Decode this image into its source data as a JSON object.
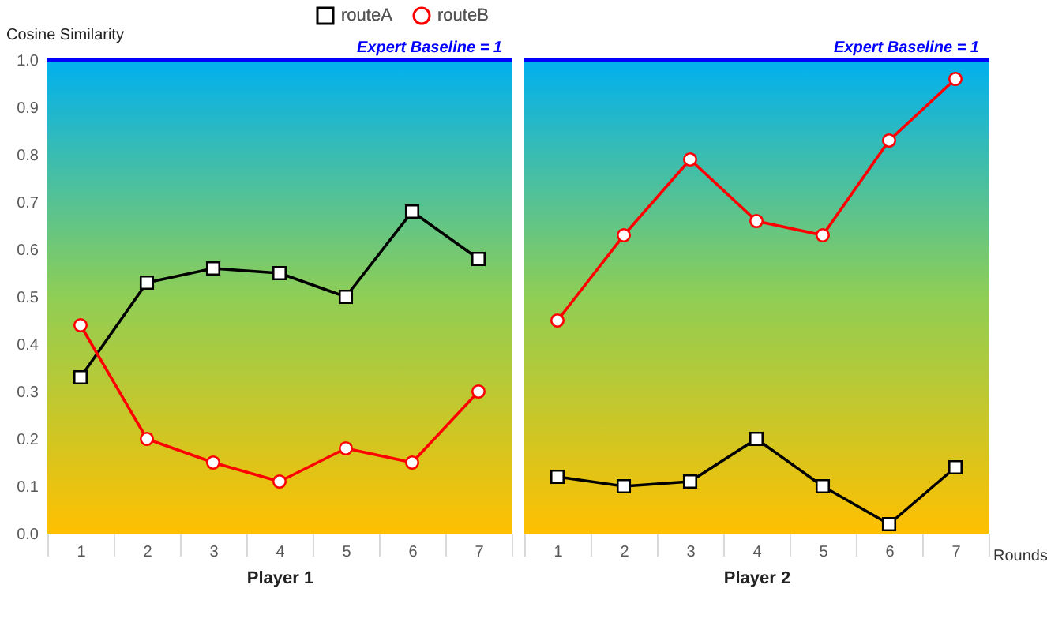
{
  "chart_data": [
    {
      "type": "line",
      "xlabel": "Player 1",
      "ylabel": "Cosine Similarity",
      "categories": [
        "1",
        "2",
        "3",
        "4",
        "5",
        "6",
        "7"
      ],
      "series": [
        {
          "name": "routeA",
          "color": "#000000",
          "marker": "square",
          "values": [
            0.33,
            0.53,
            0.56,
            0.55,
            0.5,
            0.68,
            0.58
          ]
        },
        {
          "name": "routeB",
          "color": "#ff0000",
          "marker": "circle",
          "values": [
            0.44,
            0.2,
            0.15,
            0.11,
            0.18,
            0.15,
            0.3
          ]
        }
      ],
      "ylim": [
        0,
        1
      ],
      "yticks": [
        {
          "value": 0,
          "label": "0.0"
        },
        0.1,
        0.2,
        0.3,
        0.4,
        0.5,
        0.6,
        0.7,
        0.8,
        0.9,
        {
          "value": 1,
          "label": "1.0"
        }
      ],
      "ref_lines": [
        {
          "axis": "y",
          "value": 1,
          "label": "Expert Baseline = 1",
          "color": "#0000ff"
        }
      ],
      "legend": "top"
    },
    {
      "type": "line",
      "xlabel": "Player 2",
      "categories": [
        "1",
        "2",
        "3",
        "4",
        "5",
        "6",
        "7"
      ],
      "series": [
        {
          "color": "#000000",
          "marker": "square",
          "values": [
            0.12,
            0.1,
            0.11,
            0.2,
            0.1,
            0.02,
            0.14
          ]
        },
        {
          "color": "#ff0000",
          "marker": "circle",
          "values": [
            0.45,
            0.63,
            0.79,
            0.66,
            0.63,
            0.83,
            0.96
          ]
        }
      ],
      "ylim": [
        0,
        1
      ],
      "ref_lines": [
        {
          "axis": "y",
          "value": 1,
          "label": "Expert Baseline = 1",
          "color": "#0000ff"
        }
      ],
      "annotations": [
        "Rounds"
      ],
      "tick_labels": "x"
    }
  ]
}
